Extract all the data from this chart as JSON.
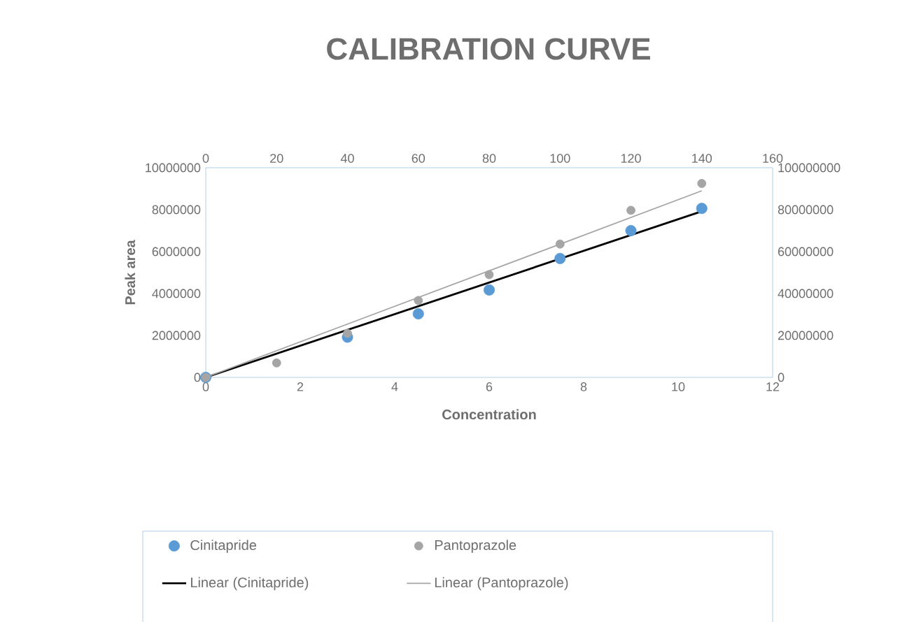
{
  "chart_data": {
    "type": "scatter",
    "title": "CALIBRATION CURVE",
    "xlabel": "Concentration",
    "ylabel": "Peak area",
    "xlim": [
      0,
      12
    ],
    "xticks": [
      0,
      2,
      4,
      6,
      8,
      10,
      12
    ],
    "ylim": [
      0,
      10000000
    ],
    "yticks": [
      0,
      2000000,
      4000000,
      6000000,
      8000000,
      10000000
    ],
    "x2lim": [
      0,
      160
    ],
    "x2ticks": [
      0,
      20,
      40,
      60,
      80,
      100,
      120,
      140,
      160
    ],
    "y2lim": [
      0,
      100000000
    ],
    "y2ticks": [
      0,
      20000000,
      40000000,
      60000000,
      80000000,
      100000000
    ],
    "legend": "bottom",
    "series": [
      {
        "name": "Cinitapride",
        "marker": "circle",
        "color": "#5b9bd5",
        "x": [
          0,
          1.5,
          3,
          4.5,
          6,
          7.5,
          9,
          10.5
        ],
        "values": [
          0,
          null,
          1920000,
          3030000,
          4170000,
          5670000,
          7000000,
          8060000
        ]
      },
      {
        "name": "Pantoprazole",
        "marker": "circle",
        "axis": "y2",
        "color": "#a5a5a5",
        "x": [
          0,
          1.5,
          3,
          4.5,
          6,
          7.5,
          9,
          10.5
        ],
        "values": [
          0,
          6900000,
          21000000,
          36700000,
          49000000,
          63600000,
          79700000,
          92500000
        ]
      },
      {
        "name": "Linear (Cinitapride)",
        "type": "line",
        "marker": "none",
        "color": "#000000",
        "x": [
          0,
          10.5
        ],
        "values": [
          0,
          7920000
        ]
      },
      {
        "name": "Linear (Pantoprazole)",
        "type": "line",
        "marker": "none",
        "axis": "y2",
        "color": "#a5a5a5",
        "x": [
          0,
          10.5
        ],
        "values": [
          0,
          89000000
        ]
      }
    ]
  }
}
